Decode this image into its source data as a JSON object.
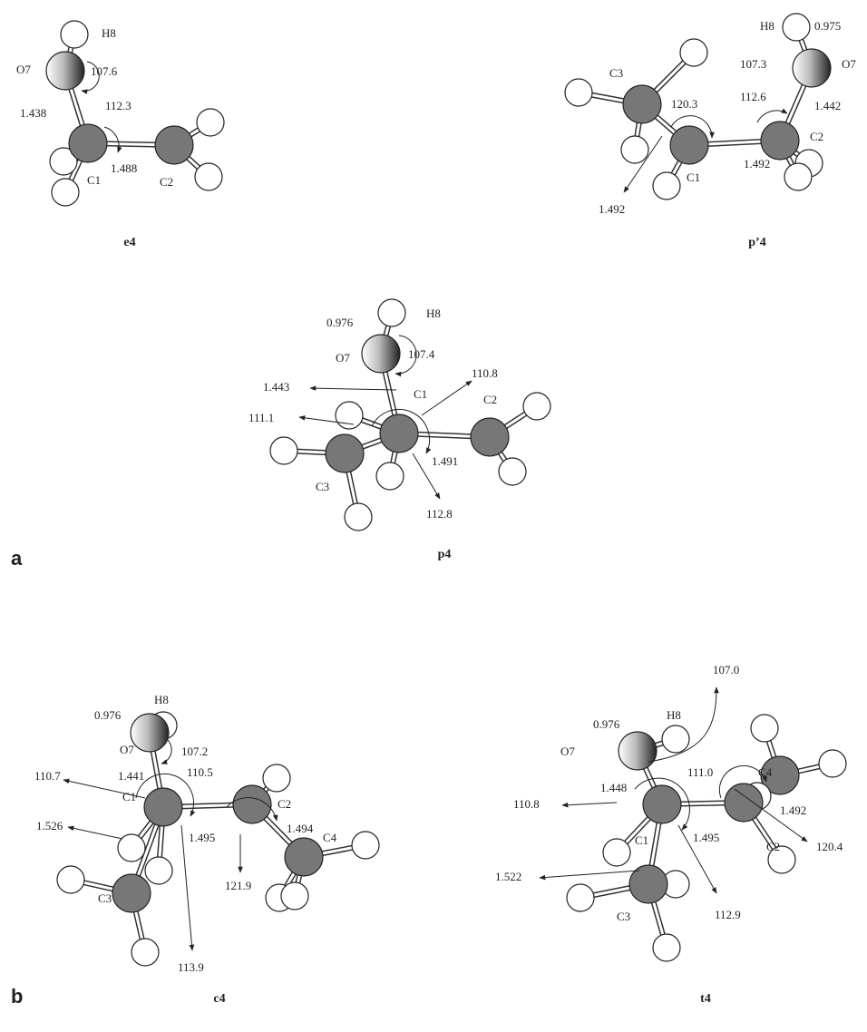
{
  "panel_labels": [
    "a",
    "b"
  ],
  "molecules": [
    {
      "name": "e4",
      "atoms": [
        "H8",
        "O7",
        "C1",
        "C2"
      ],
      "annotations": [
        "107.6",
        "1.438",
        "112.3",
        "1.488"
      ]
    },
    {
      "name": "p’4",
      "atoms": [
        "C3",
        "H8",
        "O7",
        "C1",
        "C2"
      ],
      "annotations": [
        "0.975",
        "107.3",
        "120.3",
        "112.6",
        "1.442",
        "1.492",
        "1.492"
      ]
    },
    {
      "name": "p4",
      "atoms": [
        "H8",
        "O7",
        "C1",
        "C2",
        "C3"
      ],
      "annotations": [
        "0.976",
        "107.4",
        "1.443",
        "110.8",
        "111.1",
        "1.491",
        "112.8"
      ]
    },
    {
      "name": "c4",
      "atoms": [
        "H8",
        "O7",
        "C1",
        "C2",
        "C3",
        "C4"
      ],
      "annotations": [
        "0.976",
        "107.2",
        "1.441",
        "110.5",
        "110.7",
        "1.526",
        "1.495",
        "1.494",
        "121.9",
        "113.9"
      ]
    },
    {
      "name": "t4",
      "atoms": [
        "H8",
        "O7",
        "C4",
        "C1",
        "C2",
        "C3"
      ],
      "annotations": [
        "107.0",
        "0.976",
        "1.448",
        "111.0",
        "1.492",
        "110.8",
        "1.495",
        "120.4",
        "1.522",
        "112.9"
      ]
    }
  ]
}
